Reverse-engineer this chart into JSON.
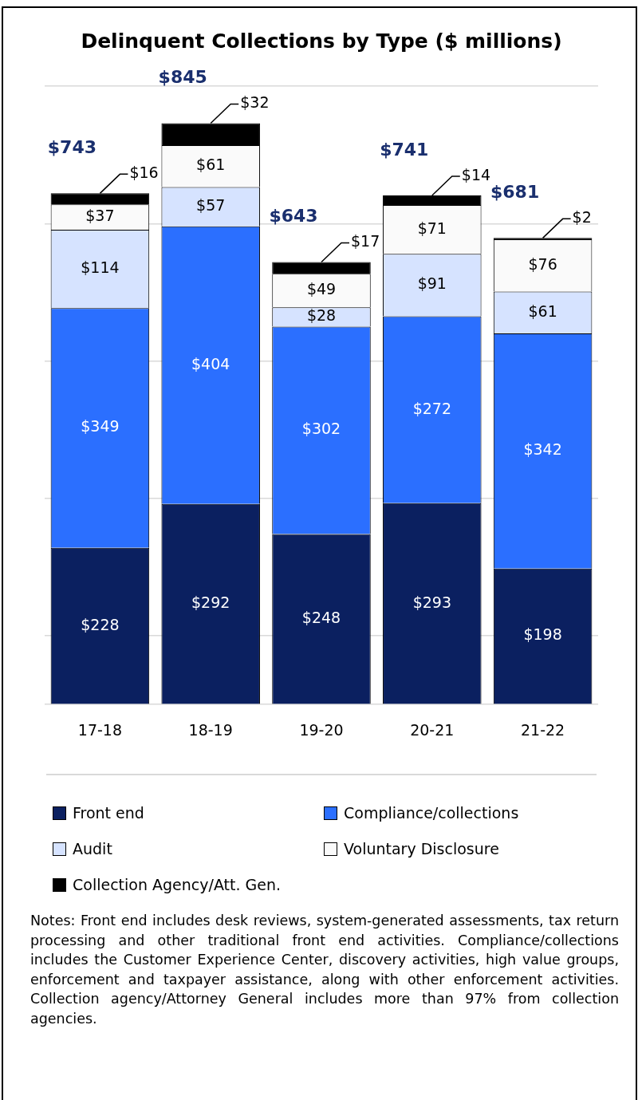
{
  "chart_data": {
    "type": "bar",
    "title": "Delinquent Collections by Type ($ millions)",
    "categories": [
      "17-18",
      "18-19",
      "19-20",
      "20-21",
      "21-22"
    ],
    "stacked": true,
    "series": [
      {
        "name": "Front end",
        "color": "#0b2060",
        "values": [
          228,
          292,
          248,
          293,
          198
        ],
        "value_labels": [
          "$228",
          "$292",
          "$248",
          "$293",
          "$198"
        ]
      },
      {
        "name": "Compliance/collections",
        "color": "#2b6fff",
        "values": [
          349,
          404,
          302,
          272,
          342
        ],
        "value_labels": [
          "$349",
          "$404",
          "$302",
          "$272",
          "$342"
        ]
      },
      {
        "name": "Audit",
        "color": "#d6e3ff",
        "values": [
          114,
          57,
          28,
          91,
          61
        ],
        "value_labels": [
          "$114",
          "$57",
          "$28",
          "$91",
          "$61"
        ]
      },
      {
        "name": "Voluntary Disclosure",
        "color": "#fafafa",
        "values": [
          37,
          61,
          49,
          71,
          76
        ],
        "value_labels": [
          "$37",
          "$61",
          "$49",
          "$71",
          "$76"
        ]
      },
      {
        "name": "Collection Agency/Att. Gen.",
        "color": "#000000",
        "values": [
          16,
          32,
          17,
          14,
          2
        ],
        "value_labels": [
          "$16",
          "$32",
          "$17",
          "$14",
          "$2"
        ]
      }
    ],
    "totals": [
      "$743",
      "$845",
      "$643",
      "$741",
      "$681"
    ],
    "ylim": [
      0,
      900
    ],
    "yticks": [
      {
        "value": 0,
        "label": null
      },
      {
        "value": 100,
        "label": null
      },
      {
        "value": 300,
        "label": null
      },
      {
        "value": 500,
        "label": null
      },
      {
        "value": 700,
        "label": null
      },
      {
        "value": 900,
        "label": null
      }
    ],
    "tick_labels": "x",
    "grid": "y",
    "legend": "bottom",
    "annotations": [
      "Notes: Front end includes desk reviews, system-generated assessments, tax return processing and other traditional front end activities. Compliance/collections includes the Customer Experience Center, discovery activities, high value groups, enforcement and taxpayer assistance, along with other enforcement activities. Collection agency/Attorney General includes more than 97% from collection agencies."
    ]
  }
}
